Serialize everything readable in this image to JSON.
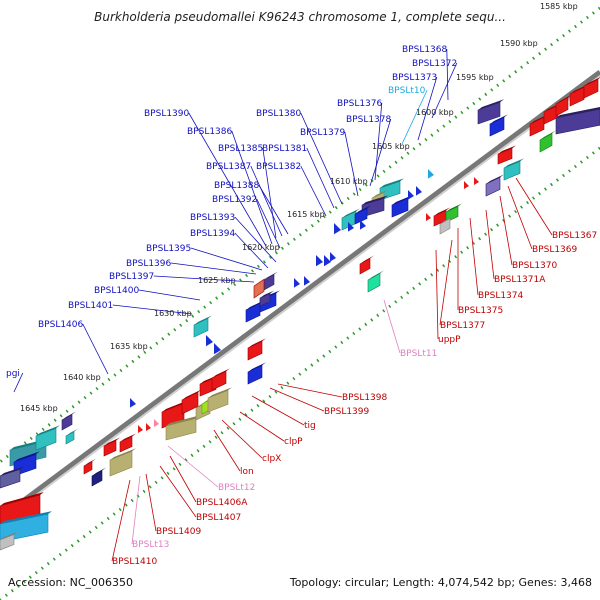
{
  "title": "Burkholderia pseudomallei K96243 chromosome 1, complete sequ...",
  "footer": {
    "accession": "Accession: NC_006350",
    "summary": "Topology: circular; Length: 4,074,542 bp; Genes: 3,468"
  },
  "colors": {
    "forward_label": "#1010c0",
    "reverse_label": "#c00000",
    "trna_forward": "#20a8e0",
    "trna_reverse": "#e080c0",
    "backbone": "#888888",
    "tick_dots": "#2a9a2a"
  },
  "kbp_ticks": [
    "1585 kbp",
    "1590 kbp",
    "1595 kbp",
    "1600 kbp",
    "1605 kbp",
    "1610 kbp",
    "1615 kbp",
    "1620 kbp",
    "1625 kbp",
    "1630 kbp",
    "1635 kbp",
    "1640 kbp",
    "1645 kbp"
  ],
  "upper_labels": [
    "BPSL1368",
    "BPSL1372",
    "BPSL1373",
    "BPSLt10",
    "BPSL1376",
    "BPSL1378",
    "BPSL1379",
    "BPSL1380",
    "BPSL1381",
    "BPSL1382",
    "BPSL1390",
    "BPSL1386",
    "BPSL1385",
    "BPSL1387",
    "BPSL1388",
    "BPSL1392",
    "BPSL1393",
    "BPSL1394",
    "BPSL1395",
    "BPSL1396",
    "BPSL1397",
    "BPSL1400",
    "BPSL1401",
    "BPSL1406",
    "pgi"
  ],
  "lower_labels": [
    "BPSL1367",
    "BPSL1369",
    "BPSL1370",
    "BPSL1371A",
    "BPSL1374",
    "BPSL1375",
    "BPSL1377",
    "uppP",
    "BPSLt11",
    "BPSL1398",
    "BPSL1399",
    "tig",
    "clpP",
    "clpX",
    "lon",
    "BPSLt12",
    "BPSL1406A",
    "BPSL1407",
    "BPSL1409",
    "BPSLt13",
    "BPSL1410"
  ]
}
